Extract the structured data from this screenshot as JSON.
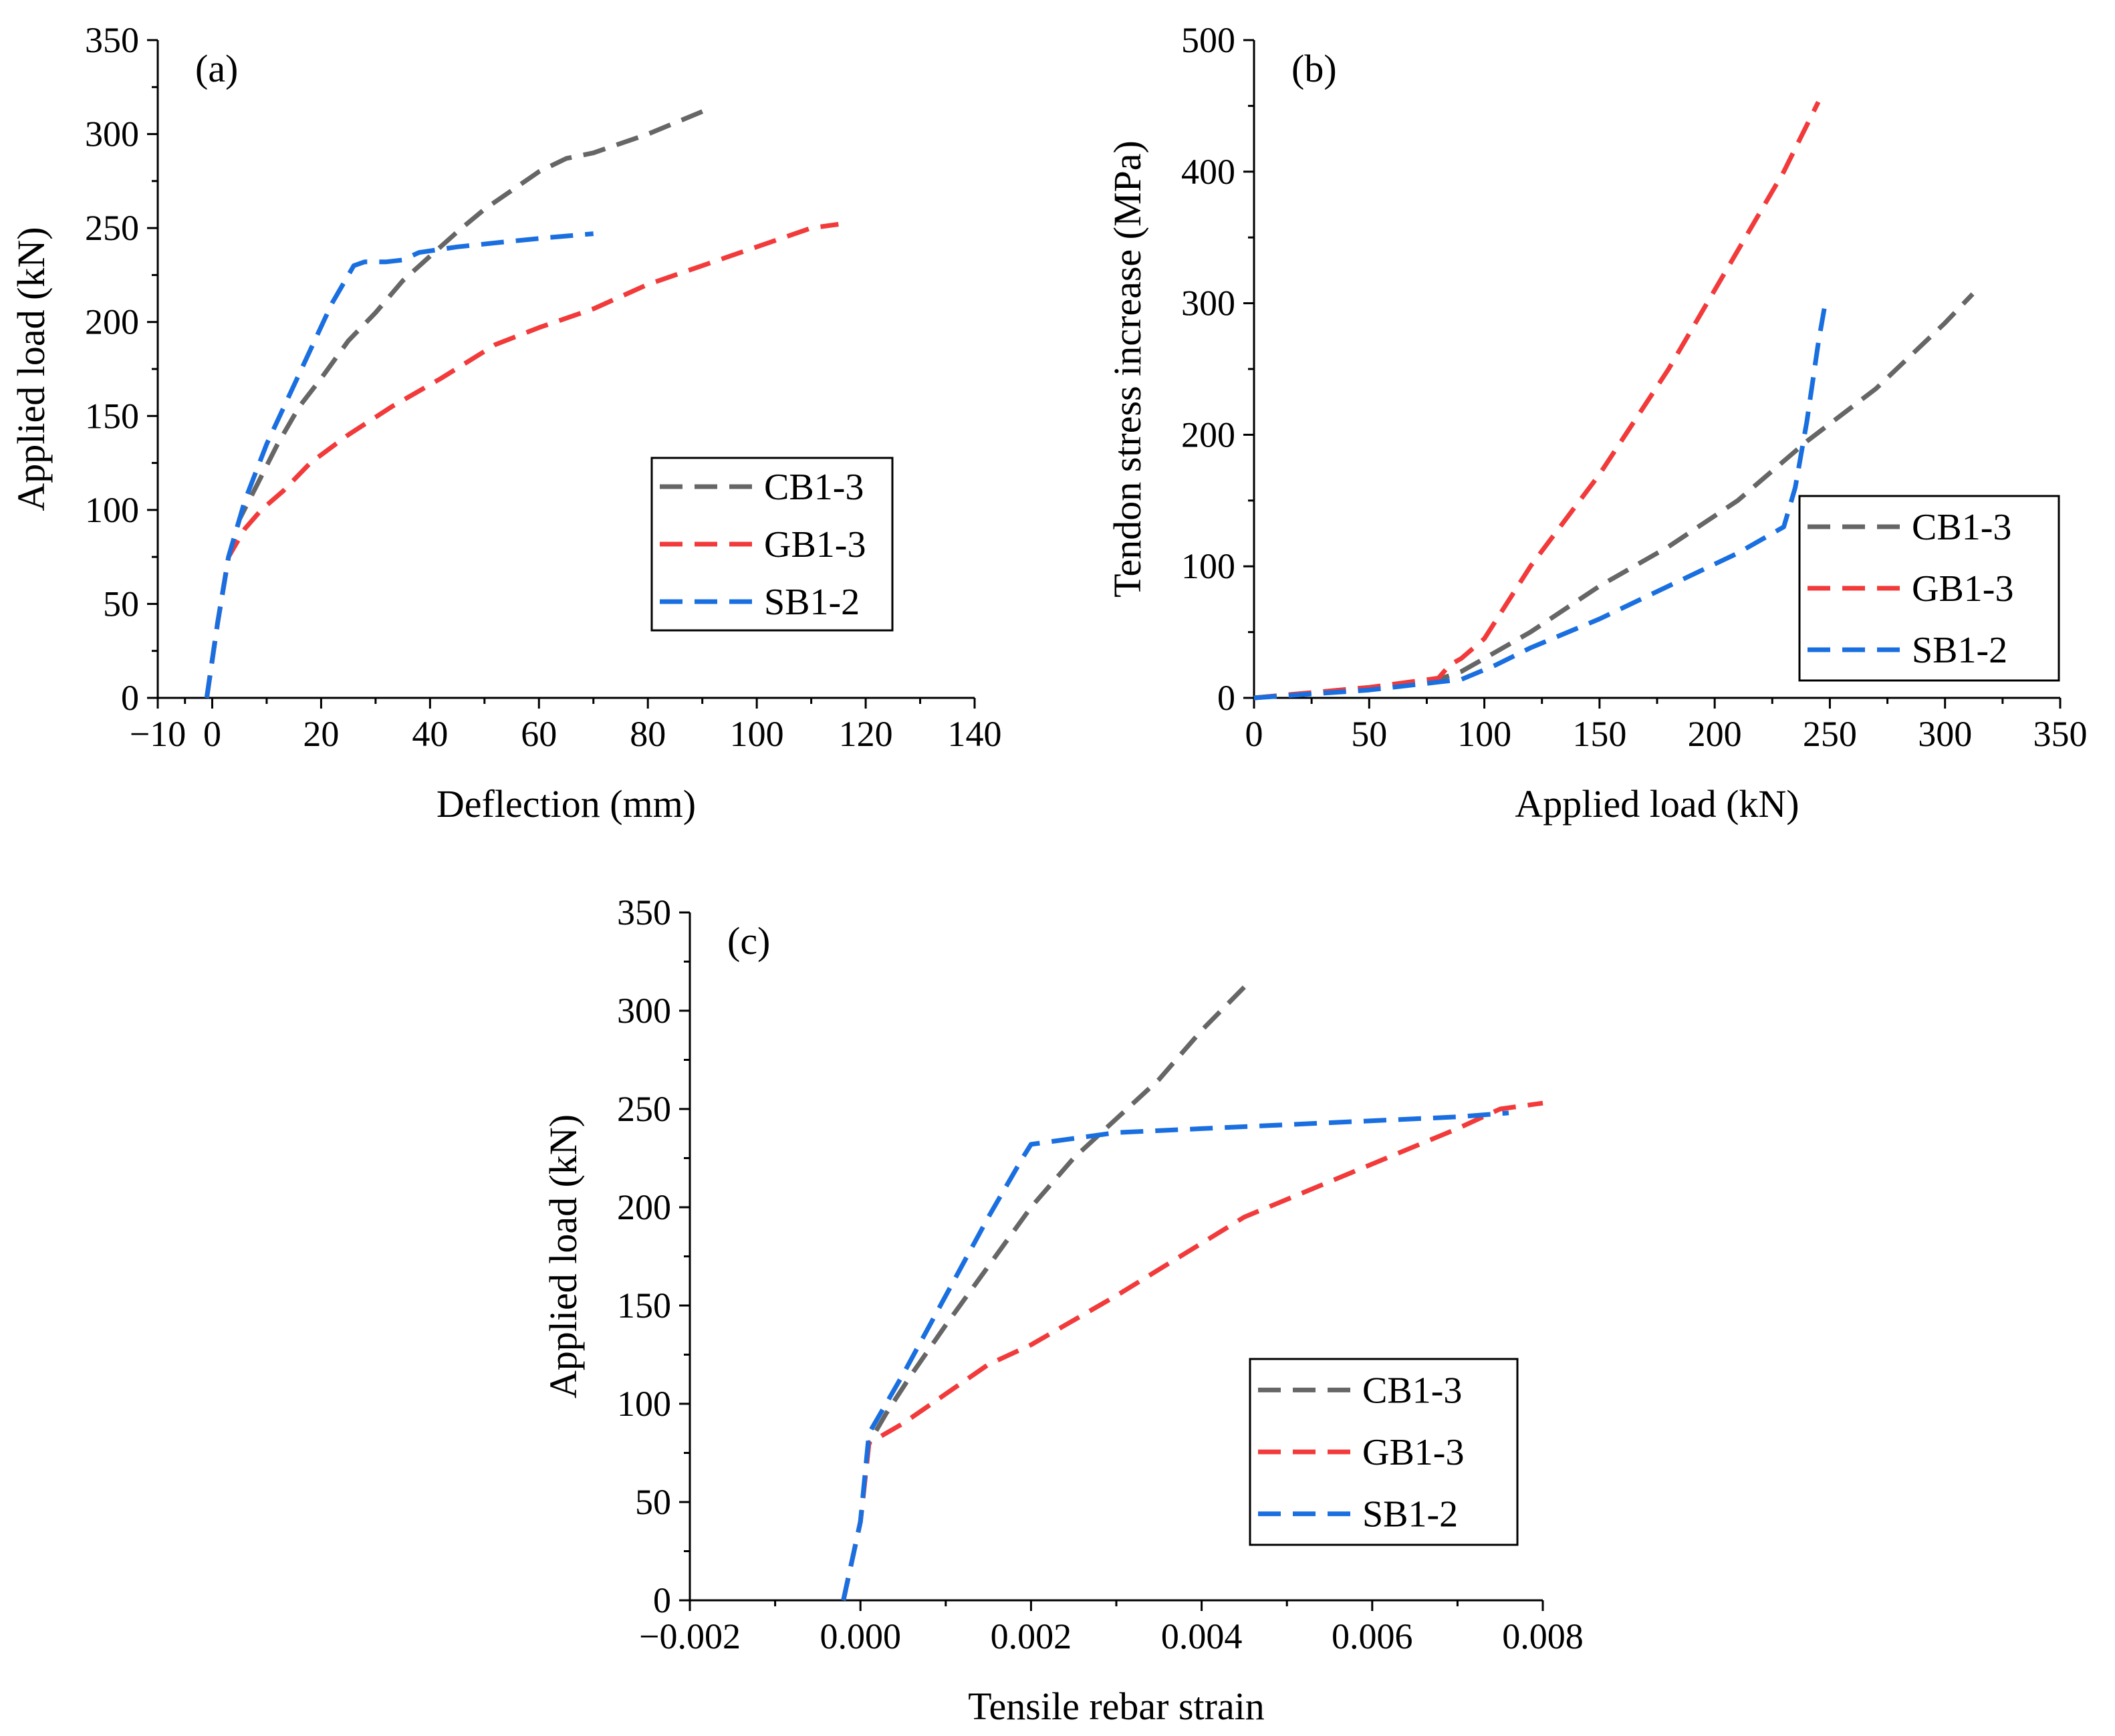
{
  "colors": {
    "CB1-3": "#666666",
    "GB1-3": "#f23a3a",
    "SB1-2": "#1a6fe0"
  },
  "chart_data": [
    {
      "id": "a",
      "type": "line",
      "panel_label": "(a)",
      "xlabel": "Deflection (mm)",
      "ylabel": "Applied load (kN)",
      "xlim": [
        -10,
        140
      ],
      "ylim": [
        0,
        350
      ],
      "xticks": [
        -10,
        0,
        20,
        40,
        60,
        80,
        100,
        120,
        140
      ],
      "xtick_labels": [
        "−10",
        "0",
        "20",
        "40",
        "60",
        "80",
        "100",
        "120",
        "140"
      ],
      "yticks": [
        0,
        50,
        100,
        150,
        200,
        250,
        300,
        350
      ],
      "ytick_labels": [
        "0",
        "50",
        "100",
        "150",
        "200",
        "250",
        "300",
        "350"
      ],
      "legend_position": "center-right",
      "series": [
        {
          "name": "CB1-3",
          "color": "#666666",
          "x": [
            -1,
            1,
            3,
            5,
            8,
            12,
            16,
            20,
            25,
            30,
            35,
            40,
            45,
            50,
            55,
            60,
            65,
            70,
            80,
            90
          ],
          "y": [
            0,
            40,
            75,
            95,
            112,
            135,
            155,
            170,
            190,
            205,
            222,
            235,
            248,
            260,
            270,
            280,
            287,
            290,
            300,
            312
          ]
        },
        {
          "name": "GB1-3",
          "color": "#f23a3a",
          "x": [
            -1,
            1,
            3,
            6,
            9,
            13,
            18,
            25,
            33,
            42,
            52,
            60,
            70,
            80,
            90,
            100,
            110,
            115
          ],
          "y": [
            0,
            40,
            75,
            90,
            100,
            110,
            125,
            140,
            155,
            170,
            188,
            197,
            207,
            220,
            230,
            240,
            250,
            252
          ]
        },
        {
          "name": "SB1-2",
          "color": "#1a6fe0",
          "x": [
            -1,
            1,
            3,
            6,
            10,
            14,
            18,
            22,
            26,
            28,
            30,
            32,
            35,
            38,
            45,
            55,
            62,
            70
          ],
          "y": [
            0,
            40,
            75,
            105,
            135,
            160,
            185,
            210,
            230,
            232,
            232,
            232,
            233,
            237,
            240,
            243,
            245,
            247
          ]
        }
      ]
    },
    {
      "id": "b",
      "type": "line",
      "panel_label": "(b)",
      "xlabel": "Applied load (kN)",
      "ylabel": "Tendon stress increase (MPa)",
      "xlim": [
        0,
        350
      ],
      "ylim": [
        0,
        500
      ],
      "xticks": [
        0,
        50,
        100,
        150,
        200,
        250,
        300,
        350
      ],
      "xtick_labels": [
        "0",
        "50",
        "100",
        "150",
        "200",
        "250",
        "300",
        "350"
      ],
      "yticks": [
        0,
        100,
        200,
        300,
        400,
        500
      ],
      "ytick_labels": [
        "0",
        "100",
        "200",
        "300",
        "400",
        "500"
      ],
      "legend_position": "center-right",
      "series": [
        {
          "name": "CB1-3",
          "color": "#666666",
          "x": [
            0,
            50,
            80,
            90,
            100,
            120,
            150,
            180,
            210,
            240,
            270,
            300,
            312
          ],
          "y": [
            0,
            8,
            14,
            20,
            30,
            50,
            85,
            115,
            150,
            195,
            235,
            285,
            307
          ]
        },
        {
          "name": "GB1-3",
          "color": "#f23a3a",
          "x": [
            0,
            50,
            80,
            85,
            90,
            100,
            120,
            150,
            180,
            210,
            230,
            245
          ],
          "y": [
            0,
            8,
            15,
            25,
            30,
            45,
            100,
            170,
            250,
            340,
            400,
            453
          ]
        },
        {
          "name": "SB1-2",
          "color": "#1a6fe0",
          "x": [
            0,
            50,
            90,
            105,
            120,
            150,
            180,
            210,
            230,
            235,
            240,
            245,
            248
          ],
          "y": [
            0,
            6,
            14,
            25,
            38,
            60,
            85,
            110,
            130,
            160,
            210,
            270,
            300
          ]
        }
      ]
    },
    {
      "id": "c",
      "type": "line",
      "panel_label": "(c)",
      "xlabel": "Tensile rebar strain",
      "ylabel": "Applied load (kN)",
      "xlim": [
        -0.002,
        0.008
      ],
      "ylim": [
        0,
        350
      ],
      "xticks": [
        -0.002,
        0,
        0.002,
        0.004,
        0.006,
        0.008
      ],
      "xtick_labels": [
        "−0.002",
        "0.000",
        "0.002",
        "0.004",
        "0.006",
        "0.008"
      ],
      "yticks": [
        0,
        50,
        100,
        150,
        200,
        250,
        300,
        350
      ],
      "ytick_labels": [
        "0",
        "50",
        "100",
        "150",
        "200",
        "250",
        "300",
        "350"
      ],
      "legend_position": "bottom-right",
      "series": [
        {
          "name": "CB1-3",
          "color": "#666666",
          "x": [
            -0.0002,
            0,
            0.0001,
            0.0003,
            0.0006,
            0.001,
            0.0015,
            0.002,
            0.0025,
            0.003,
            0.0035,
            0.004,
            0.0045
          ],
          "y": [
            0,
            40,
            80,
            95,
            115,
            140,
            170,
            200,
            225,
            245,
            265,
            290,
            312
          ]
        },
        {
          "name": "GB1-3",
          "color": "#f23a3a",
          "x": [
            -0.0002,
            0,
            0.0001,
            0.0005,
            0.001,
            0.0015,
            0.002,
            0.003,
            0.0045,
            0.006,
            0.007,
            0.0075,
            0.008
          ],
          "y": [
            0,
            40,
            80,
            90,
            105,
            120,
            130,
            155,
            195,
            222,
            240,
            250,
            253
          ]
        },
        {
          "name": "SB1-2",
          "color": "#1a6fe0",
          "x": [
            -0.0002,
            0,
            0.0001,
            0.0005,
            0.001,
            0.0015,
            0.0019,
            0.002,
            0.0025,
            0.003,
            0.004,
            0.005,
            0.006,
            0.007,
            0.0076
          ],
          "y": [
            0,
            40,
            85,
            115,
            155,
            195,
            225,
            232,
            235,
            238,
            240,
            242,
            244,
            246,
            248
          ]
        }
      ]
    }
  ]
}
